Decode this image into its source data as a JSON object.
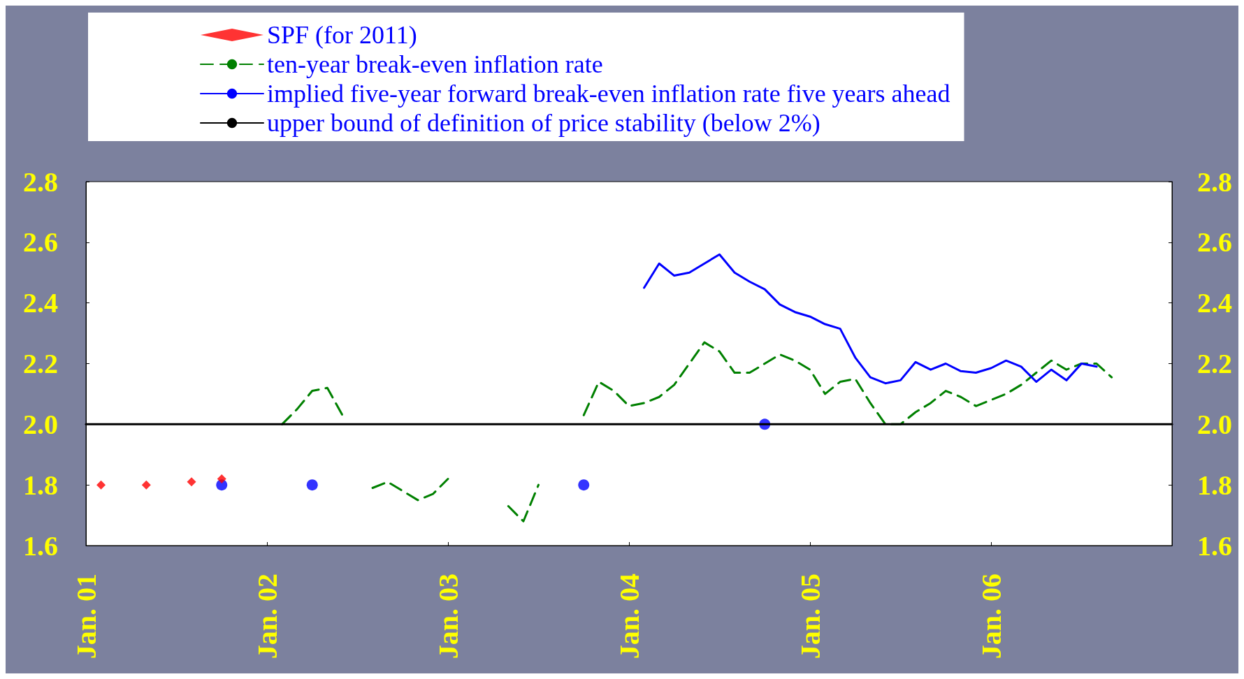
{
  "chart_data": {
    "type": "line",
    "series": [
      {
        "type": "scatter",
        "marker": "circle",
        "color": "#0000ff",
        "x": [
          "2001-10",
          "2002-04",
          "2003-10",
          "2004-10"
        ],
        "values": [
          1.8,
          1.8,
          1.8,
          2.0
        ]
      },
      {
        "type": "scatter",
        "marker": "diamond",
        "name": "SPF (for 2011)",
        "color": "#ff0000",
        "x": [
          "2001-02",
          "2001-05",
          "2001-08",
          "2001-10"
        ],
        "values": [
          1.8,
          1.8,
          1.81,
          1.82
        ]
      },
      {
        "name": "ten-year break-even inflation rate",
        "color": "#008000",
        "line_style": "dashed",
        "x": [
          "2002-02",
          "2002-03",
          "2002-04",
          "2002-05",
          "2002-06",
          "2002-07",
          "2002-08",
          "2002-09",
          "2002-10",
          "2002-11",
          "2002-12",
          "2003-01",
          "2003-02",
          "2003-03",
          "2003-04",
          "2003-05",
          "2003-06",
          "2003-07",
          "2003-08",
          "2003-09",
          "2003-10",
          "2003-11",
          "2003-12",
          "2004-01",
          "2004-02",
          "2004-03",
          "2004-04",
          "2004-05",
          "2004-06",
          "2004-07",
          "2004-08",
          "2004-09",
          "2004-10",
          "2004-11",
          "2004-12",
          "2005-01",
          "2005-02",
          "2005-03",
          "2005-04",
          "2005-05",
          "2005-06",
          "2005-07",
          "2005-08",
          "2005-09",
          "2005-10",
          "2005-11",
          "2005-12",
          "2006-01",
          "2006-02",
          "2006-03",
          "2006-04",
          "2006-05",
          "2006-06",
          "2006-07",
          "2006-08",
          "2006-09"
        ],
        "values": [
          2.0,
          2.05,
          2.11,
          2.12,
          2.03,
          null,
          1.79,
          1.81,
          1.78,
          1.75,
          1.77,
          1.82,
          null,
          null,
          null,
          1.73,
          1.68,
          1.8,
          null,
          null,
          2.03,
          2.14,
          2.11,
          2.06,
          2.07,
          2.09,
          2.13,
          2.2,
          2.27,
          2.24,
          2.17,
          2.17,
          2.2,
          2.23,
          2.21,
          2.18,
          2.1,
          2.14,
          2.15,
          2.07,
          2.0,
          2.0,
          2.04,
          2.07,
          2.11,
          2.09,
          2.06,
          2.08,
          2.1,
          2.13,
          2.17,
          2.21,
          2.18,
          2.2,
          2.2,
          2.155
        ]
      },
      {
        "name": "implied five-year forward break-even inflation rate five years ahead",
        "color": "#0000ff",
        "line_style": "solid",
        "x": [
          "2004-02",
          "2004-03",
          "2004-04",
          "2004-05",
          "2004-06",
          "2004-07",
          "2004-08",
          "2004-09",
          "2004-10",
          "2004-11",
          "2004-12",
          "2005-01",
          "2005-02",
          "2005-03",
          "2005-04",
          "2005-05",
          "2005-06",
          "2005-07",
          "2005-08",
          "2005-09",
          "2005-10",
          "2005-11",
          "2005-12",
          "2006-01",
          "2006-02",
          "2006-03",
          "2006-04",
          "2006-05",
          "2006-06",
          "2006-07",
          "2006-08"
        ],
        "values": [
          2.45,
          2.53,
          2.49,
          2.5,
          2.53,
          2.56,
          2.5,
          2.47,
          2.445,
          2.395,
          2.37,
          2.355,
          2.33,
          2.315,
          2.22,
          2.155,
          2.135,
          2.145,
          2.205,
          2.18,
          2.2,
          2.175,
          2.17,
          2.185,
          2.21,
          2.19,
          2.14,
          2.18,
          2.145,
          2.2,
          2.19
        ]
      },
      {
        "name": "upper bound of definition of price stability (below 2%)",
        "color": "#000000",
        "line_style": "solid",
        "x": [
          "2001-01",
          "2007-01"
        ],
        "values": [
          2.0,
          2.0
        ]
      }
    ],
    "xlim": [
      "2001-01",
      "2007-01"
    ],
    "xticks": [
      {
        "value": "2001-01",
        "label": "Jan. 01"
      },
      {
        "value": "2002-01",
        "label": "Jan. 02"
      },
      {
        "value": "2003-01",
        "label": "Jan. 03"
      },
      {
        "value": "2004-01",
        "label": "Jan. 04"
      },
      {
        "value": "2005-01",
        "label": "Jan. 05"
      },
      {
        "value": "2006-01",
        "label": "Jan. 06"
      }
    ],
    "ylim": [
      1.6,
      2.8
    ],
    "yticks": [
      1.6,
      1.8,
      {
        "value": 2,
        "label": "2.0"
      },
      2.2,
      2.4,
      2.6,
      2.8
    ],
    "y2lim": [
      1.6,
      2.8
    ],
    "y2ticks": [
      1.6,
      1.8,
      {
        "value": 2,
        "label": "2.0"
      },
      2.2,
      2.4,
      2.6,
      2.8
    ],
    "legend": "top",
    "grid": false
  }
}
